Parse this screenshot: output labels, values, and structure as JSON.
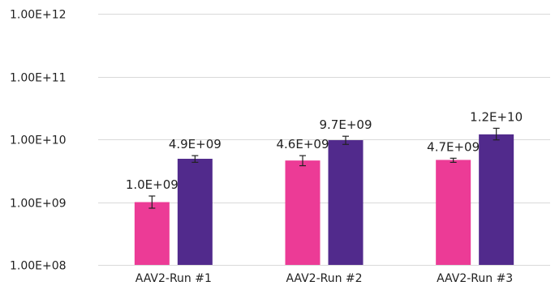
{
  "chart_data": {
    "type": "bar",
    "title": "",
    "xlabel": "",
    "ylabel": "",
    "yscale": "log",
    "ylim": [
      100000000.0,
      1000000000000.0
    ],
    "yticks": [
      {
        "value": 100000000.0,
        "label": "1.00E+08"
      },
      {
        "value": 1000000000.0,
        "label": "1.00E+09"
      },
      {
        "value": 10000000000.0,
        "label": "1.00E+10"
      },
      {
        "value": 100000000000.0,
        "label": "1.00E+11"
      },
      {
        "value": 1000000000000.0,
        "label": "1.00E+12"
      }
    ],
    "grid": true,
    "legend": "none",
    "categories": [
      "AAV2-Run #1",
      "AAV2-Run #2",
      "AAV2-Run #3"
    ],
    "series": [
      {
        "color": "#ec3b96",
        "values": [
          1000000000.0,
          4600000000.0,
          4700000000.0
        ],
        "labels": [
          "1.0E+09",
          "4.6E+09",
          "4.7E+09"
        ],
        "error_low": [
          800000000.0,
          3800000000.0,
          4300000000.0
        ],
        "error_high": [
          1250000000.0,
          5500000000.0,
          5000000000.0
        ]
      },
      {
        "color": "#512a8c",
        "values": [
          4900000000.0,
          9700000000.0,
          12000000000.0
        ],
        "labels": [
          "4.9E+09",
          "9.7E+09",
          "1.2E+10"
        ],
        "error_low": [
          4300000000.0,
          8300000000.0,
          9800000000.0
        ],
        "error_high": [
          5500000000.0,
          11200000000.0,
          15000000000.0
        ]
      }
    ]
  }
}
